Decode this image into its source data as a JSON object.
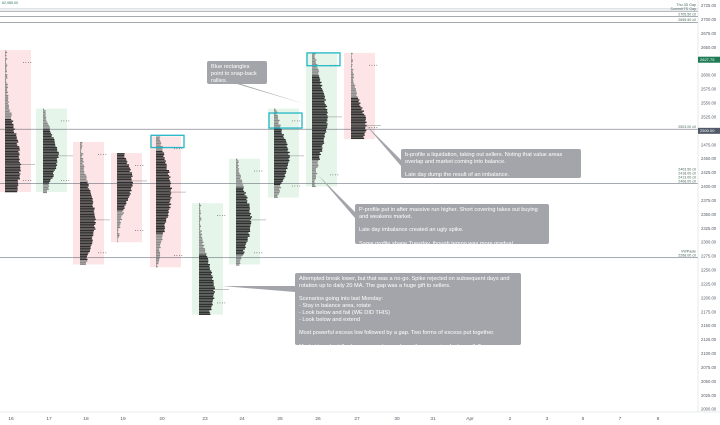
{
  "chart_data": {
    "type": "market-profile",
    "y_axis": {
      "range": [
        1995,
        2735
      ],
      "ticks": [
        2000,
        2025,
        2050,
        2075,
        2100,
        2125,
        2150,
        2175,
        2200,
        2225,
        2250,
        2275,
        2300,
        2325,
        2350,
        2375,
        2400,
        2425,
        2450,
        2475,
        2500,
        2525,
        2550,
        2575,
        2600,
        2625,
        2650,
        2675,
        2700,
        2725
      ]
    },
    "x_axis": {
      "labels": [
        "16",
        "17",
        "18",
        "19",
        "20",
        "23",
        "24",
        "25",
        "26",
        "27",
        "30",
        "31",
        "Apr",
        "2",
        "3",
        "6",
        "7",
        "8"
      ]
    },
    "price_tags": [
      {
        "text": "2627.75",
        "value": 2627.75,
        "color": "#1e7b56"
      },
      {
        "text": "2500.00",
        "value": 2500,
        "color": "#505a68"
      }
    ],
    "levels": [
      {
        "value": 2715,
        "labels": [
          "Thu 3D Gap",
          "Summit FS Gap"
        ]
      },
      {
        "value": 2705,
        "labels": [
          "2705.50 c0"
        ]
      },
      {
        "value": 2695,
        "labels": [
          "2695.50 c0"
        ]
      },
      {
        "value": 2503,
        "labels": [
          "2503.00 c0"
        ]
      },
      {
        "value": 2405,
        "labels": [
          "2403.50 c0",
          "2418.00 c0",
          "2413.00 c0",
          "2408.00 c0"
        ]
      },
      {
        "value": 2272,
        "labels": [
          "VWPaste",
          "2268.00 c0"
        ]
      }
    ],
    "profiles": [
      {
        "day": "16",
        "bg": "red",
        "range": [
          2390,
          2645
        ],
        "poc": 2440
      },
      {
        "day": "17",
        "bg": "green",
        "range": [
          2390,
          2540
        ],
        "poc": 2455
      },
      {
        "day": "18",
        "bg": "red",
        "range": [
          2260,
          2480
        ],
        "poc": 2340
      },
      {
        "day": "19",
        "bg": "red",
        "range": [
          2300,
          2460
        ],
        "poc": 2410
      },
      {
        "day": "20",
        "bg": "red",
        "range": [
          2255,
          2490
        ],
        "poc": 2390
      },
      {
        "day": "23",
        "bg": "green",
        "range": [
          2170,
          2370
        ],
        "poc": 2215
      },
      {
        "day": "24",
        "bg": "green",
        "range": [
          2260,
          2450
        ],
        "poc": 2340
      },
      {
        "day": "25",
        "bg": "green",
        "range": [
          2380,
          2540
        ],
        "poc": 2455
      },
      {
        "day": "26",
        "bg": "green",
        "range": [
          2400,
          2640
        ],
        "poc": 2525
      },
      {
        "day": "27",
        "bg": "red",
        "range": [
          2485,
          2640
        ],
        "poc": 2510
      }
    ],
    "highlight_boxes": [
      {
        "day": "20",
        "range": [
          2470,
          2492
        ]
      },
      {
        "day": "25",
        "range": [
          2505,
          2532
        ]
      },
      {
        "day": "26",
        "range": [
          2617,
          2640
        ]
      }
    ],
    "top_left_label": "62,985.00"
  },
  "notes": {
    "blue_rect": "Blue rectangles point to snap-back rallies.",
    "b_profile": "b-profile a liquidation, taking out sellers. Noting that value areas overlap and market coming into balance.\n\nLate day dump the result of an imbalance.",
    "p_profile": "P-profile put in after massive run higher. Short covering takes out buying and weakens market.\n\nLate day imbalance created an ugly spike.\n\nSame profile shape Tuesday, though tempo was more gradual.",
    "break_lower": "Attempted break lower, but that was a no-go. Spike rejected on subsequent days and rotation up to daily 20 MA. The gap was a huge gift to sellers.\n\nScenarios going into last Monday:\n- Stay in balance area, rotate\n- Look below and fail (WE DID THIS)\n- Look below and extend\n\nMost powerful excess low followed by a gap. Two forms of excess put together.\n\nMarket too short (bad news came), gap down, then covering fuels a rally?"
  },
  "colors": {
    "note_bg": "#a3a5aa",
    "highlight": "#21b7c6",
    "red_bg": "#fde4e6",
    "green_bg": "#e6f5e9",
    "histogram": "#2f2f2f",
    "histogram_light": "#8a8a8a"
  }
}
